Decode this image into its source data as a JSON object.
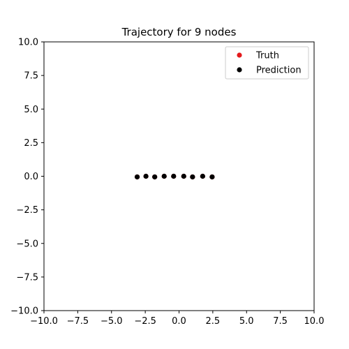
{
  "chart_data": {
    "type": "scatter",
    "title": "Trajectory for 9 nodes",
    "xlabel": "",
    "ylabel": "",
    "xlim": [
      -10,
      10
    ],
    "ylim": [
      -10,
      10
    ],
    "x_ticks": [
      "−10.0",
      "−7.5",
      "−5.0",
      "−2.5",
      "0.0",
      "2.5",
      "5.0",
      "7.5",
      "10.0"
    ],
    "y_ticks": [
      "−10.0",
      "−7.5",
      "−5.0",
      "−2.5",
      "0.0",
      "2.5",
      "5.0",
      "7.5",
      "10.0"
    ],
    "grid": false,
    "legend_position": "top-right",
    "series": [
      {
        "name": "Truth",
        "color": "#e41a1c",
        "points": [
          [
            -3.1,
            -0.05
          ],
          [
            -2.45,
            0.0
          ],
          [
            -1.8,
            -0.05
          ],
          [
            -1.1,
            0.0
          ],
          [
            -0.4,
            0.0
          ],
          [
            0.35,
            0.0
          ],
          [
            1.0,
            -0.05
          ],
          [
            1.75,
            0.0
          ],
          [
            2.45,
            -0.05
          ]
        ]
      },
      {
        "name": "Prediction",
        "color": "#000000",
        "points": [
          [
            -3.1,
            -0.05
          ],
          [
            -2.45,
            0.0
          ],
          [
            -1.8,
            -0.05
          ],
          [
            -1.1,
            0.0
          ],
          [
            -0.4,
            0.0
          ],
          [
            0.35,
            0.0
          ],
          [
            1.0,
            -0.05
          ],
          [
            1.75,
            0.0
          ],
          [
            2.45,
            -0.05
          ]
        ]
      }
    ]
  }
}
